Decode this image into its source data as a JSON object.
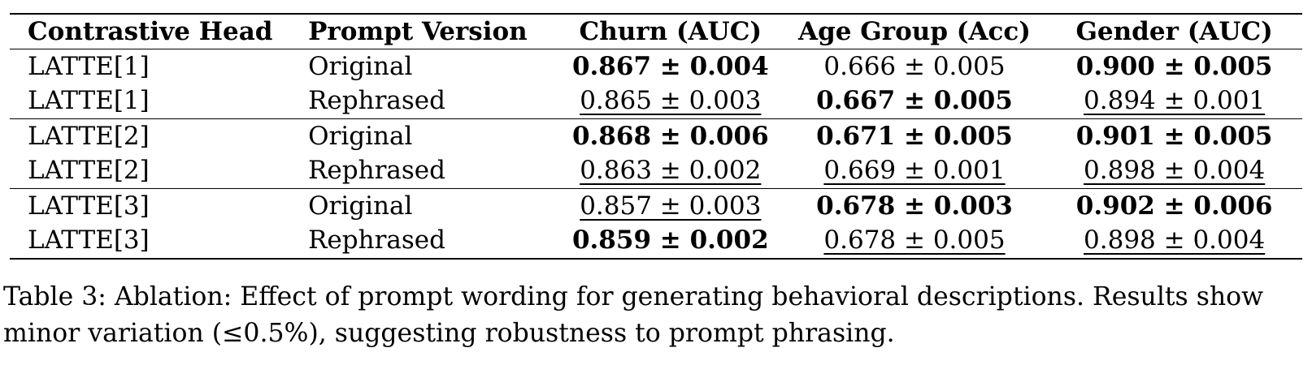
{
  "table": {
    "headers": {
      "head": "Contrastive Head",
      "prompt": "Prompt Version",
      "churn": "Churn (AUC)",
      "age": "Age Group (Acc)",
      "gender": "Gender (AUC)"
    },
    "rows": [
      {
        "head": "LATTE[1]",
        "prompt": "Original",
        "churn": {
          "text": "0.867 ± 0.004",
          "style": "bold"
        },
        "age": {
          "text": "0.666 ± 0.005",
          "style": "plain"
        },
        "gender": {
          "text": "0.900 ± 0.005",
          "style": "bold"
        }
      },
      {
        "head": "LATTE[1]",
        "prompt": "Rephrased",
        "churn": {
          "text": "0.865 ± 0.003",
          "style": "underline"
        },
        "age": {
          "text": "0.667 ± 0.005",
          "style": "bold"
        },
        "gender": {
          "text": "0.894 ± 0.001",
          "style": "underline"
        }
      },
      {
        "head": "LATTE[2]",
        "prompt": "Original",
        "churn": {
          "text": "0.868 ± 0.006",
          "style": "bold"
        },
        "age": {
          "text": "0.671 ± 0.005",
          "style": "bold"
        },
        "gender": {
          "text": "0.901 ± 0.005",
          "style": "bold"
        }
      },
      {
        "head": "LATTE[2]",
        "prompt": "Rephrased",
        "churn": {
          "text": "0.863 ± 0.002",
          "style": "underline"
        },
        "age": {
          "text": "0.669 ± 0.001",
          "style": "underline"
        },
        "gender": {
          "text": "0.898 ± 0.004",
          "style": "underline"
        }
      },
      {
        "head": "LATTE[3]",
        "prompt": "Original",
        "churn": {
          "text": "0.857 ± 0.003",
          "style": "underline"
        },
        "age": {
          "text": "0.678 ± 0.003",
          "style": "bold"
        },
        "gender": {
          "text": "0.902 ± 0.006",
          "style": "bold"
        }
      },
      {
        "head": "LATTE[3]",
        "prompt": "Rephrased",
        "churn": {
          "text": "0.859 ± 0.002",
          "style": "bold"
        },
        "age": {
          "text": "0.678 ± 0.005",
          "style": "underline"
        },
        "gender": {
          "text": "0.898 ± 0.004",
          "style": "underline"
        }
      }
    ]
  },
  "caption": {
    "line1": "Table 3: Ablation: Effect of prompt wording for generating behavioral descriptions. Results show",
    "line2": "minor variation (≤0.5%), suggesting robustness to prompt phrasing."
  }
}
